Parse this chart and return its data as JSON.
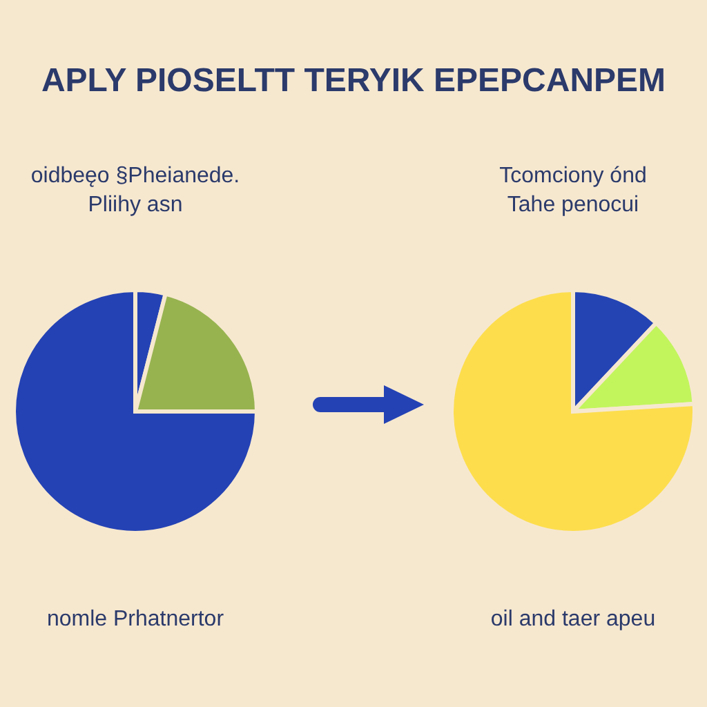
{
  "chart_data": [
    {
      "type": "pie",
      "title": "APLY PIOSELTT TERYIK EPEPCANPEM",
      "subtitle": "oidbeęo §Pheianede.\nPliihy asn",
      "xlabel": "nomle Prhatnertor",
      "categories": [
        null,
        null,
        null
      ],
      "values": [
        4,
        21,
        75
      ],
      "colors": [
        "#2442b4",
        "#97b350",
        "#2442b4"
      ]
    },
    {
      "type": "pie",
      "subtitle": "Tcomciony ónd\nTahe penocui",
      "xlabel": "oil and taer apeu",
      "categories": [
        null,
        null,
        null
      ],
      "values": [
        12,
        12,
        76
      ],
      "colors": [
        "#2444b4",
        "#c2f55c",
        "#fddd4c"
      ]
    }
  ]
}
